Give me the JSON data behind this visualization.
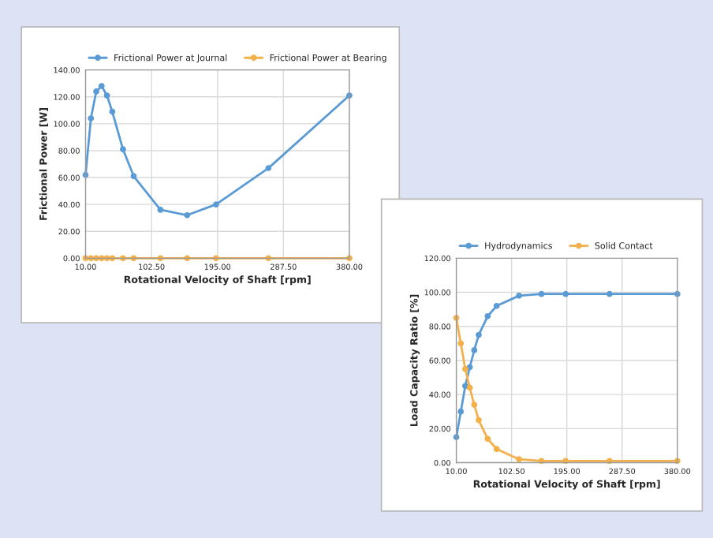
{
  "chart_data": [
    {
      "type": "line",
      "xlabel": "Rotational Velocity of Shaft [rpm]",
      "ylabel": "Frictional Power [W]",
      "xlim": [
        10,
        380
      ],
      "xticks": [
        {
          "value": 10,
          "label": "10.00"
        },
        {
          "value": 102.5,
          "label": "102.50"
        },
        {
          "value": 195,
          "label": "195.00"
        },
        {
          "value": 287.5,
          "label": "287.50"
        },
        {
          "value": 380,
          "label": "380.00"
        }
      ],
      "ylim": [
        0,
        140
      ],
      "yticks": [
        {
          "value": 0,
          "label": "0.00"
        },
        {
          "value": 20,
          "label": "20.00"
        },
        {
          "value": 40,
          "label": "40.00"
        },
        {
          "value": 60,
          "label": "60.00"
        },
        {
          "value": 80,
          "label": "80.00"
        },
        {
          "value": 100,
          "label": "100.00"
        },
        {
          "value": 120,
          "label": "120.00"
        },
        {
          "value": 140,
          "label": "140.00"
        }
      ],
      "grid": true,
      "legend": "top",
      "marker": "circle",
      "line_style": "solid",
      "x": [
        10,
        17.5,
        25,
        32.5,
        40,
        47.5,
        62.5,
        77.5,
        115,
        152.5,
        193,
        266.5,
        380
      ],
      "series": [
        {
          "name": "Frictional Power at Journal",
          "color": "#5b9bd5",
          "values": [
            62,
            104,
            124,
            128,
            121,
            109,
            81,
            61,
            36,
            32,
            40,
            67,
            121
          ]
        },
        {
          "name": "Frictional Power at Bearing",
          "color": "#f4b04a",
          "values": [
            0,
            0,
            0,
            0,
            0,
            0,
            0,
            0,
            0,
            0,
            0,
            0,
            0
          ]
        }
      ]
    },
    {
      "type": "line",
      "xlabel": "Rotational Velocity of Shaft [rpm]",
      "ylabel": "Load Capacity Ratio [%]",
      "xlim": [
        10,
        380
      ],
      "xticks": [
        {
          "value": 10,
          "label": "10.00"
        },
        {
          "value": 102.5,
          "label": "102.50"
        },
        {
          "value": 195,
          "label": "195.00"
        },
        {
          "value": 287.5,
          "label": "287.50"
        },
        {
          "value": 380,
          "label": "380.00"
        }
      ],
      "ylim": [
        0,
        120
      ],
      "yticks": [
        {
          "value": 0,
          "label": "0.00"
        },
        {
          "value": 20,
          "label": "20.00"
        },
        {
          "value": 40,
          "label": "40.00"
        },
        {
          "value": 60,
          "label": "60.00"
        },
        {
          "value": 80,
          "label": "80.00"
        },
        {
          "value": 100,
          "label": "100.00"
        },
        {
          "value": 120,
          "label": "120.00"
        }
      ],
      "grid": true,
      "legend": "top",
      "marker": "circle",
      "line_style": "solid",
      "x": [
        10,
        17.5,
        25,
        32.5,
        40,
        47.5,
        62.5,
        77.5,
        115,
        152.5,
        193,
        266.5,
        380
      ],
      "series": [
        {
          "name": "Hydrodynamics",
          "color": "#5b9bd5",
          "values": [
            15,
            30,
            45,
            56,
            66,
            75,
            86,
            92,
            98,
            99,
            99,
            99,
            99
          ]
        },
        {
          "name": "Solid Contact",
          "color": "#f4b04a",
          "values": [
            85,
            70,
            55,
            44,
            34,
            25,
            14,
            8,
            2,
            1,
            1,
            1,
            1
          ]
        }
      ]
    }
  ]
}
